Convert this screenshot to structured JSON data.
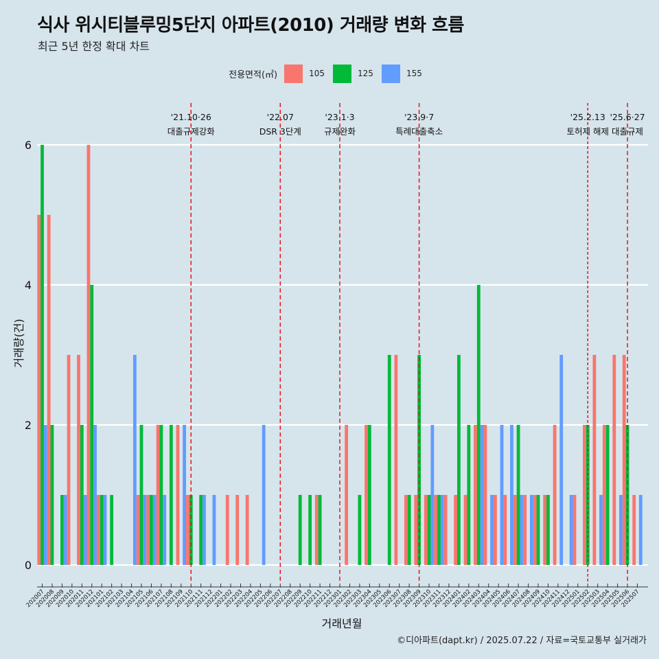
{
  "header": {
    "title": "식사 위시티블루밍5단지 아파트(2010) 거래량 변화 흐름",
    "subtitle": "최근 5년 한정 확대 차트"
  },
  "legend": {
    "title": "전용면적(㎡)",
    "items": [
      {
        "label": "105",
        "color": "#f8766d"
      },
      {
        "label": "125",
        "color": "#00ba38"
      },
      {
        "label": "155",
        "color": "#619cff"
      }
    ]
  },
  "caption": "©디아파트(dapt.kr) / 2025.07.22 / 자료=국토교통부 실거래가",
  "chart_data": {
    "type": "bar",
    "xlabel": "거래년월",
    "ylabel": "거래량(건)",
    "ylim": [
      0,
      6
    ],
    "yticks": [
      0,
      2,
      4,
      6
    ],
    "grid": true,
    "legend_position": "top",
    "categories": [
      "202007",
      "202008",
      "202009",
      "202010",
      "202011",
      "202012",
      "202101",
      "202102",
      "202103",
      "202104",
      "202105",
      "202106",
      "202107",
      "202108",
      "202109",
      "202110",
      "202111",
      "202112",
      "202201",
      "202202",
      "202203",
      "202204",
      "202205",
      "202206",
      "202207",
      "202208",
      "202209",
      "202210",
      "202211",
      "202212",
      "202301",
      "202302",
      "202303",
      "202304",
      "202305",
      "202306",
      "202307",
      "202308",
      "202309",
      "202310",
      "202311",
      "202312",
      "202401",
      "202402",
      "202403",
      "202404",
      "202405",
      "202406",
      "202407",
      "202408",
      "202409",
      "202410",
      "202411",
      "202412",
      "202501",
      "202502",
      "202503",
      "202504",
      "202505",
      "202506",
      "202507"
    ],
    "series": [
      {
        "name": "105",
        "color": "#f8766d",
        "values": [
          5,
          5,
          0,
          3,
          3,
          6,
          1,
          0,
          0,
          0,
          1,
          1,
          2,
          0,
          2,
          1,
          0,
          0,
          0,
          1,
          1,
          1,
          0,
          0,
          0,
          0,
          0,
          0,
          1,
          0,
          0,
          2,
          0,
          2,
          0,
          0,
          3,
          1,
          1,
          1,
          1,
          1,
          1,
          1,
          2,
          2,
          1,
          1,
          1,
          1,
          1,
          1,
          2,
          0,
          1,
          2,
          3,
          2,
          3,
          3,
          1
        ]
      },
      {
        "name": "125",
        "color": "#00ba38",
        "values": [
          6,
          2,
          1,
          0,
          2,
          4,
          1,
          1,
          0,
          0,
          2,
          1,
          2,
          2,
          0,
          1,
          1,
          0,
          0,
          0,
          0,
          0,
          0,
          0,
          0,
          0,
          1,
          1,
          1,
          0,
          0,
          0,
          1,
          2,
          0,
          3,
          0,
          1,
          3,
          1,
          1,
          0,
          3,
          2,
          4,
          0,
          0,
          0,
          2,
          0,
          1,
          1,
          0,
          0,
          0,
          2,
          0,
          2,
          0,
          2,
          0
        ]
      },
      {
        "name": "155",
        "color": "#619cff",
        "values": [
          2,
          0,
          1,
          0,
          1,
          2,
          1,
          0,
          0,
          3,
          1,
          1,
          1,
          0,
          2,
          0,
          1,
          1,
          0,
          0,
          0,
          0,
          2,
          0,
          0,
          0,
          0,
          0,
          0,
          0,
          0,
          0,
          0,
          0,
          0,
          0,
          0,
          0,
          0,
          2,
          1,
          0,
          0,
          0,
          2,
          1,
          2,
          2,
          1,
          1,
          0,
          0,
          3,
          1,
          0,
          0,
          1,
          0,
          1,
          0,
          1
        ]
      }
    ],
    "events": [
      {
        "x": "202110",
        "date": "'21.10·26",
        "label": "대출규제강화",
        "style": "dashed"
      },
      {
        "x": "202207",
        "date": "'22.07",
        "label": "DSR 3단계",
        "style": "dashed"
      },
      {
        "x": "202301",
        "date": "'23.1·3",
        "label": "규제완화",
        "style": "dashed"
      },
      {
        "x": "202309",
        "date": "'23.9·7",
        "label": "특례대출축소",
        "style": "dashed"
      },
      {
        "x": "202502",
        "date": "'25.2.13",
        "label": "토허제 해제",
        "style": "dotted"
      },
      {
        "x": "202506",
        "date": "'25.6·27",
        "label": "대출규제",
        "style": "dashed"
      }
    ]
  }
}
